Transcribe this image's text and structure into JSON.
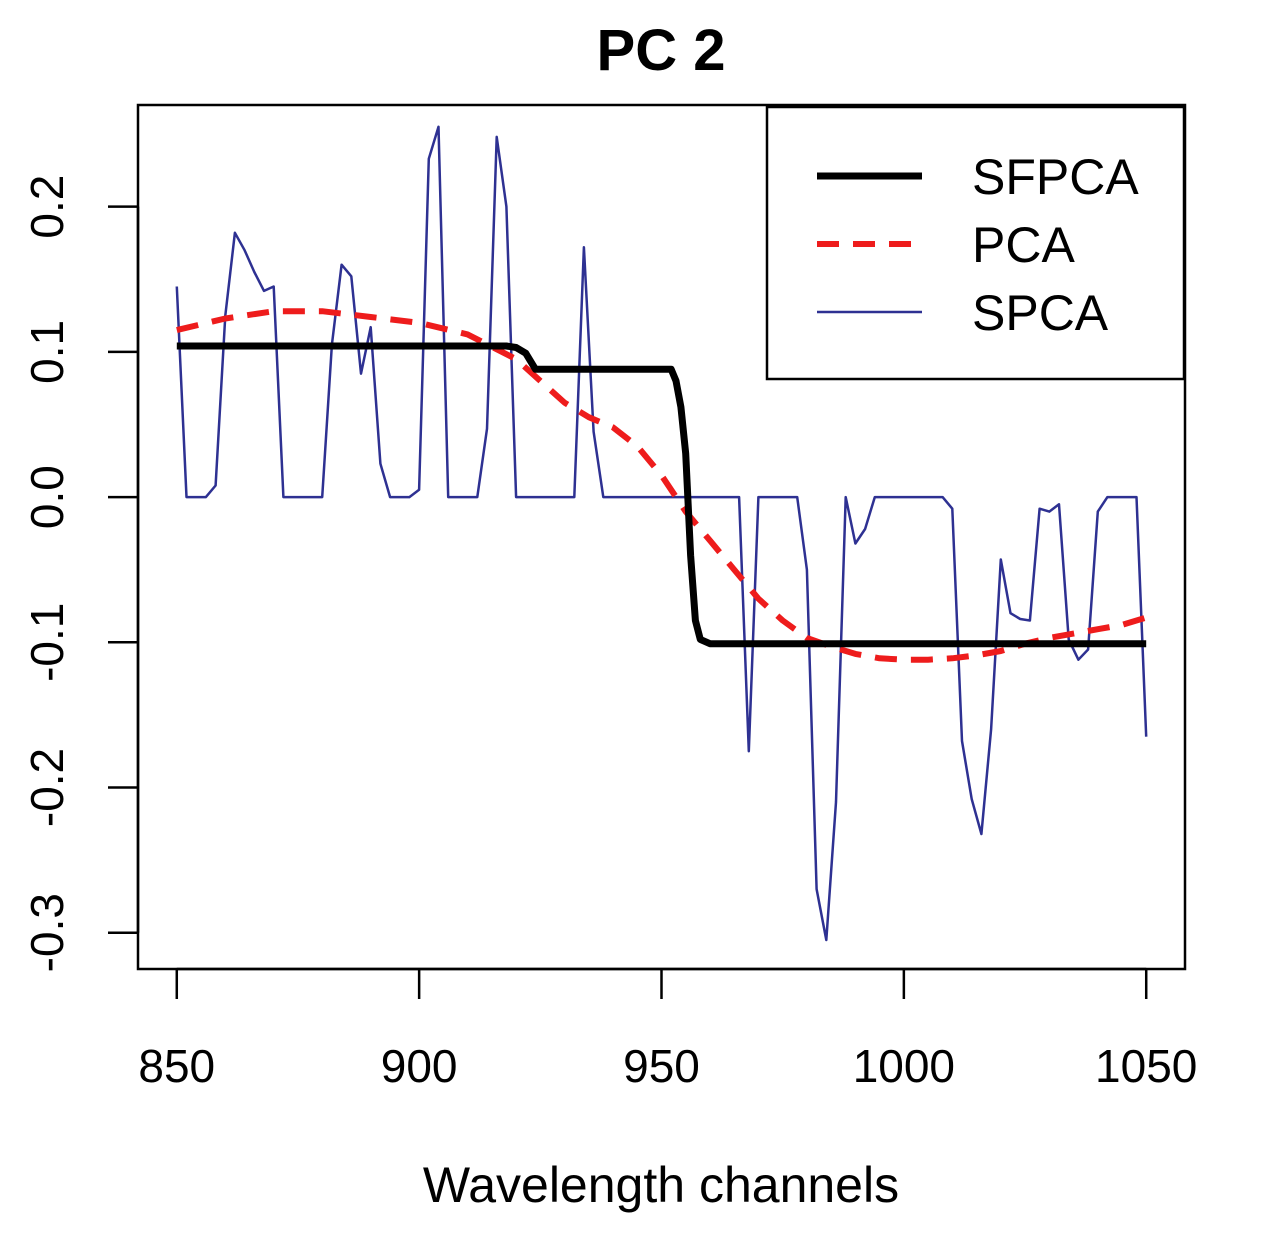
{
  "chart_data": {
    "type": "line",
    "title": "PC 2",
    "xlabel": "Wavelength channels",
    "ylabel": "",
    "xlim": [
      842,
      1058
    ],
    "ylim": [
      -0.325,
      0.27
    ],
    "xticks": [
      850,
      900,
      950,
      1000,
      1050
    ],
    "xtick_labels": [
      "850",
      "900",
      "950",
      "1000",
      "1050"
    ],
    "yticks": [
      -0.3,
      -0.2,
      -0.1,
      0.0,
      0.1,
      0.2
    ],
    "ytick_labels": [
      "-0.3",
      "-0.2",
      "-0.1",
      "0.0",
      "0.1",
      "0.2"
    ],
    "grid": false,
    "legend_position": "top-right",
    "series": [
      {
        "name": "SFPCA",
        "color": "#000000",
        "style": "solid",
        "width": 7,
        "x": [
          850,
          918,
          920,
          922,
          924,
          952,
          953,
          954,
          955,
          956,
          957,
          958,
          960,
          1050
        ],
        "y": [
          0.104,
          0.104,
          0.103,
          0.099,
          0.088,
          0.088,
          0.08,
          0.062,
          0.03,
          -0.04,
          -0.085,
          -0.098,
          -0.101,
          -0.101
        ]
      },
      {
        "name": "PCA",
        "color": "#ee1c1c",
        "style": "dashed",
        "width": 6,
        "x": [
          850,
          860,
          870,
          880,
          890,
          900,
          910,
          920,
          925,
          930,
          935,
          940,
          945,
          950,
          955,
          960,
          965,
          970,
          975,
          980,
          985,
          990,
          995,
          1000,
          1005,
          1010,
          1015,
          1020,
          1025,
          1030,
          1035,
          1040,
          1045,
          1050
        ],
        "y": [
          0.115,
          0.123,
          0.128,
          0.128,
          0.124,
          0.12,
          0.112,
          0.095,
          0.08,
          0.065,
          0.055,
          0.048,
          0.035,
          0.015,
          -0.01,
          -0.03,
          -0.05,
          -0.07,
          -0.085,
          -0.097,
          -0.103,
          -0.108,
          -0.111,
          -0.112,
          -0.112,
          -0.111,
          -0.109,
          -0.106,
          -0.101,
          -0.097,
          -0.094,
          -0.091,
          -0.088,
          -0.083
        ]
      },
      {
        "name": "SPCA",
        "color": "#2e3192",
        "style": "solid",
        "width": 2.5,
        "x": [
          850,
          852,
          856,
          858,
          860,
          862,
          864,
          866,
          868,
          870,
          872,
          874,
          880,
          882,
          884,
          886,
          888,
          890,
          892,
          894,
          896,
          898,
          900,
          902,
          904,
          906,
          908,
          912,
          914,
          916,
          918,
          920,
          922,
          925,
          930,
          932,
          934,
          936,
          938,
          942,
          944,
          948,
          950,
          952,
          954,
          956,
          958,
          960,
          962,
          964,
          966,
          968,
          970,
          972,
          974,
          976,
          978,
          980,
          982,
          984,
          986,
          988,
          990,
          992,
          994,
          996,
          998,
          1000,
          1002,
          1004,
          1006,
          1008,
          1010,
          1012,
          1014,
          1016,
          1018,
          1020,
          1022,
          1024,
          1026,
          1028,
          1030,
          1032,
          1034,
          1036,
          1038,
          1040,
          1042,
          1044,
          1046,
          1048,
          1050
        ],
        "y": [
          0.145,
          0.0,
          0.0,
          0.008,
          0.125,
          0.182,
          0.17,
          0.155,
          0.142,
          0.145,
          0.0,
          0.0,
          0.0,
          0.105,
          0.16,
          0.152,
          0.085,
          0.117,
          0.023,
          0.0,
          0.0,
          0.0,
          0.005,
          0.233,
          0.255,
          0.0,
          0.0,
          0.0,
          0.047,
          0.248,
          0.2,
          0.0,
          0.0,
          0.0,
          0.0,
          0.0,
          0.172,
          0.045,
          0.0,
          0.0,
          0.0,
          0.0,
          0.0,
          0.0,
          0.0,
          0.0,
          0.0,
          0.0,
          0.0,
          0.0,
          0.0,
          -0.175,
          0.0,
          0.0,
          0.0,
          0.0,
          0.0,
          -0.05,
          -0.27,
          -0.305,
          -0.21,
          0.0,
          -0.032,
          -0.022,
          0.0,
          0.0,
          0.0,
          0.0,
          0.0,
          0.0,
          0.0,
          0.0,
          -0.008,
          -0.168,
          -0.208,
          -0.232,
          -0.16,
          -0.043,
          -0.08,
          -0.084,
          -0.085,
          -0.008,
          -0.01,
          -0.005,
          -0.098,
          -0.112,
          -0.105,
          -0.01,
          0.0,
          0.0,
          0.0,
          0.0,
          -0.165
        ]
      }
    ]
  }
}
